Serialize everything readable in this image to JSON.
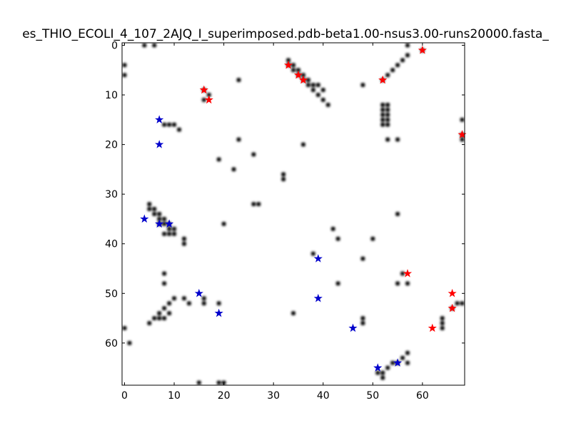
{
  "chart_data": {
    "type": "heatmap",
    "title": "es_THIO_ECOLI_4_107_2AJQ_I_superimposed.pdb-beta1.00-nsus3.00-runs20000.fasta_",
    "xlabel": "",
    "ylabel": "",
    "xlim": [
      0,
      68
    ],
    "ylim": [
      68,
      0
    ],
    "x_ticks": [
      "0",
      "10",
      "20",
      "30",
      "40",
      "50",
      "60"
    ],
    "y_ticks": [
      "0",
      "10",
      "20",
      "30",
      "40",
      "50",
      "60"
    ],
    "grid": false,
    "colors": {
      "cell": "#000000",
      "star_red": "#ff0000",
      "star_blue": "#0000cc",
      "background": "#ffffff"
    },
    "cells": [
      [
        4,
        0
      ],
      [
        6,
        0
      ],
      [
        0,
        4
      ],
      [
        0,
        6
      ],
      [
        16,
        9
      ],
      [
        17,
        10
      ],
      [
        16,
        11
      ],
      [
        23,
        7
      ],
      [
        33,
        4
      ],
      [
        34,
        5
      ],
      [
        35,
        6
      ],
      [
        36,
        7
      ],
      [
        37,
        8
      ],
      [
        38,
        9
      ],
      [
        39,
        10
      ],
      [
        40,
        11
      ],
      [
        41,
        12
      ],
      [
        33,
        3
      ],
      [
        34,
        4
      ],
      [
        35,
        5
      ],
      [
        36,
        6
      ],
      [
        37,
        7
      ],
      [
        38,
        8
      ],
      [
        39,
        8
      ],
      [
        40,
        9
      ],
      [
        52,
        7
      ],
      [
        53,
        6
      ],
      [
        54,
        5
      ],
      [
        55,
        4
      ],
      [
        56,
        3
      ],
      [
        57,
        2
      ],
      [
        48,
        8
      ],
      [
        52,
        12
      ],
      [
        52,
        13
      ],
      [
        52,
        14
      ],
      [
        52,
        15
      ],
      [
        52,
        16
      ],
      [
        53,
        12
      ],
      [
        53,
        13
      ],
      [
        53,
        14
      ],
      [
        53,
        15
      ],
      [
        53,
        16
      ],
      [
        53,
        19
      ],
      [
        55,
        19
      ],
      [
        57,
        0
      ],
      [
        60,
        1
      ],
      [
        68,
        15
      ],
      [
        68,
        18
      ],
      [
        68,
        19
      ],
      [
        8,
        16
      ],
      [
        9,
        16
      ],
      [
        10,
        16
      ],
      [
        11,
        17
      ],
      [
        23,
        19
      ],
      [
        19,
        23
      ],
      [
        22,
        25
      ],
      [
        26,
        22
      ],
      [
        32,
        26
      ],
      [
        32,
        27
      ],
      [
        26,
        32
      ],
      [
        27,
        32
      ],
      [
        36,
        20
      ],
      [
        5,
        32
      ],
      [
        5,
        33
      ],
      [
        6,
        33
      ],
      [
        6,
        34
      ],
      [
        7,
        34
      ],
      [
        7,
        35
      ],
      [
        8,
        35
      ],
      [
        8,
        36
      ],
      [
        9,
        36
      ],
      [
        9,
        37
      ],
      [
        10,
        37
      ],
      [
        10,
        38
      ],
      [
        8,
        38
      ],
      [
        9,
        38
      ],
      [
        12,
        39
      ],
      [
        12,
        40
      ],
      [
        7,
        36
      ],
      [
        20,
        36
      ],
      [
        38,
        42
      ],
      [
        42,
        37
      ],
      [
        43,
        39
      ],
      [
        48,
        43
      ],
      [
        50,
        39
      ],
      [
        55,
        34
      ],
      [
        43,
        48
      ],
      [
        55,
        48
      ],
      [
        57,
        48
      ],
      [
        56,
        46
      ],
      [
        8,
        46
      ],
      [
        8,
        48
      ],
      [
        10,
        51
      ],
      [
        12,
        51
      ],
      [
        13,
        52
      ],
      [
        16,
        51
      ],
      [
        16,
        52
      ],
      [
        19,
        52
      ],
      [
        5,
        56
      ],
      [
        6,
        55
      ],
      [
        7,
        54
      ],
      [
        8,
        53
      ],
      [
        9,
        52
      ],
      [
        7,
        55
      ],
      [
        8,
        55
      ],
      [
        9,
        54
      ],
      [
        34,
        54
      ],
      [
        48,
        55
      ],
      [
        48,
        56
      ],
      [
        0,
        57
      ],
      [
        1,
        60
      ],
      [
        57,
        62
      ],
      [
        56,
        63
      ],
      [
        57,
        64
      ],
      [
        55,
        64
      ],
      [
        54,
        64
      ],
      [
        53,
        65
      ],
      [
        52,
        66
      ],
      [
        51,
        66
      ],
      [
        52,
        67
      ],
      [
        15,
        68
      ],
      [
        19,
        68
      ],
      [
        20,
        68
      ],
      [
        64,
        55
      ],
      [
        64,
        56
      ],
      [
        64,
        57
      ],
      [
        67,
        52
      ],
      [
        68,
        52
      ],
      [
        66,
        53
      ]
    ],
    "series": [
      {
        "color": "red",
        "points": [
          [
            60,
            1
          ],
          [
            33,
            4
          ],
          [
            35,
            6
          ],
          [
            36,
            7
          ],
          [
            52,
            7
          ],
          [
            16,
            9
          ],
          [
            17,
            11
          ],
          [
            68,
            18
          ],
          [
            57,
            46
          ],
          [
            66,
            50
          ],
          [
            66,
            53
          ],
          [
            62,
            57
          ]
        ]
      },
      {
        "color": "blue",
        "points": [
          [
            7,
            15
          ],
          [
            7,
            20
          ],
          [
            4,
            35
          ],
          [
            7,
            36
          ],
          [
            9,
            36
          ],
          [
            39,
            43
          ],
          [
            15,
            50
          ],
          [
            39,
            51
          ],
          [
            19,
            54
          ],
          [
            46,
            57
          ],
          [
            51,
            65
          ],
          [
            55,
            64
          ]
        ]
      }
    ]
  }
}
